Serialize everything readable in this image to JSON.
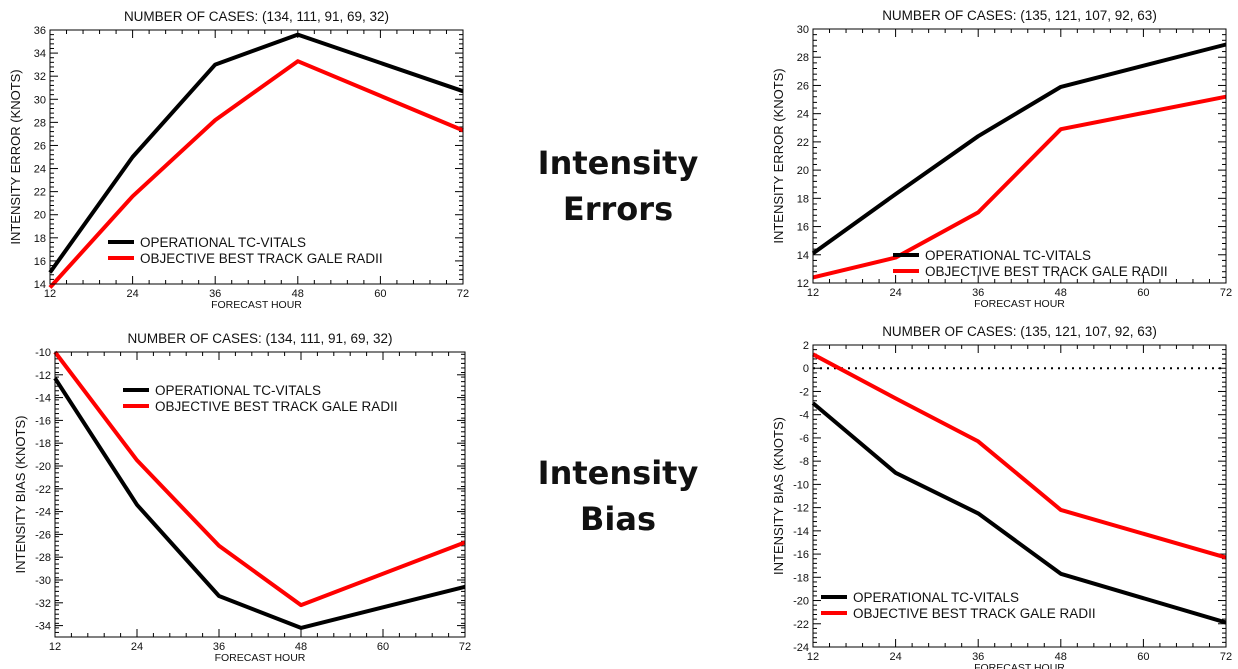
{
  "section_labels": {
    "errors": [
      "Intensity",
      "Errors"
    ],
    "bias": [
      "Intensity",
      "Bias"
    ]
  },
  "colors": {
    "operational": "#000000",
    "objective": "#ff0000",
    "axis": "#000000"
  },
  "chart_data": [
    {
      "type": "line",
      "title": "NUMBER OF CASES: (134, 111, 91, 69, 32)",
      "xlabel": "FORECAST HOUR",
      "ylabel": "INTENSITY ERROR (KNOTS)",
      "x": [
        12,
        24,
        36,
        48,
        60,
        72
      ],
      "xlim": [
        12,
        72
      ],
      "ylim": [
        14,
        36
      ],
      "yticks": [
        14,
        16,
        18,
        20,
        22,
        24,
        26,
        28,
        30,
        32,
        34,
        36
      ],
      "legend_position": "bottom-left",
      "series": [
        {
          "name": "OPERATIONAL TC-VITALS",
          "color": "#000000",
          "points": [
            [
              12,
              15.0
            ],
            [
              24,
              25.0
            ],
            [
              36,
              33.0
            ],
            [
              48,
              35.6
            ],
            [
              72,
              30.7
            ]
          ]
        },
        {
          "name": "OBJECTIVE BEST TRACK GALE RADII",
          "color": "#ff0000",
          "points": [
            [
              12,
              13.7
            ],
            [
              24,
              21.6
            ],
            [
              36,
              28.2
            ],
            [
              48,
              33.3
            ],
            [
              72,
              27.3
            ]
          ]
        }
      ]
    },
    {
      "type": "line",
      "title": "NUMBER OF CASES: (135, 121, 107, 92, 63)",
      "xlabel": "FORECAST HOUR",
      "ylabel": "INTENSITY ERROR (KNOTS)",
      "x": [
        12,
        24,
        36,
        48,
        60,
        72
      ],
      "xlim": [
        12,
        72
      ],
      "ylim": [
        12,
        30
      ],
      "yticks": [
        12,
        14,
        16,
        18,
        20,
        22,
        24,
        26,
        28,
        30
      ],
      "legend_position": "bottom-center",
      "series": [
        {
          "name": "OPERATIONAL TC-VITALS",
          "color": "#000000",
          "points": [
            [
              12,
              14.1
            ],
            [
              24,
              18.3
            ],
            [
              36,
              22.4
            ],
            [
              48,
              25.9
            ],
            [
              72,
              28.9
            ]
          ]
        },
        {
          "name": "OBJECTIVE BEST TRACK GALE RADII",
          "color": "#ff0000",
          "points": [
            [
              12,
              12.4
            ],
            [
              24,
              13.8
            ],
            [
              36,
              17.0
            ],
            [
              48,
              22.9
            ],
            [
              72,
              25.2
            ]
          ]
        }
      ]
    },
    {
      "type": "line",
      "title": "NUMBER OF CASES: (134, 111, 91, 69, 32)",
      "xlabel": "FORECAST HOUR",
      "ylabel": "INTENSITY BIAS (KNOTS)",
      "x": [
        12,
        24,
        36,
        48,
        60,
        72
      ],
      "xlim": [
        12,
        72
      ],
      "ylim": [
        -35,
        -10
      ],
      "yticks": [
        -34,
        -32,
        -30,
        -28,
        -26,
        -24,
        -22,
        -20,
        -18,
        -16,
        -14,
        -12,
        -10
      ],
      "legend_position": "top-center",
      "series": [
        {
          "name": "OPERATIONAL TC-VITALS",
          "color": "#000000",
          "points": [
            [
              12,
              -12.3
            ],
            [
              24,
              -23.4
            ],
            [
              36,
              -31.4
            ],
            [
              48,
              -34.2
            ],
            [
              72,
              -30.6
            ]
          ]
        },
        {
          "name": "OBJECTIVE BEST TRACK GALE  RADII",
          "color": "#ff0000",
          "points": [
            [
              12,
              -10.0
            ],
            [
              24,
              -19.5
            ],
            [
              36,
              -27.0
            ],
            [
              48,
              -32.2
            ],
            [
              72,
              -26.7
            ]
          ]
        }
      ]
    },
    {
      "type": "line",
      "title": "NUMBER OF CASES: (135, 121, 107, 92, 63)",
      "xlabel": "FORECAST HOUR",
      "ylabel": "INTENSITY BIAS (KNOTS)",
      "x": [
        12,
        24,
        36,
        48,
        60,
        72
      ],
      "xlim": [
        12,
        72
      ],
      "ylim": [
        -24,
        2
      ],
      "yticks": [
        -24,
        -22,
        -20,
        -18,
        -16,
        -14,
        -12,
        -10,
        -8,
        -6,
        -4,
        -2,
        0,
        2
      ],
      "zero_line": true,
      "legend_position": "bottom-left",
      "series": [
        {
          "name": "OPERATIONAL TC-VITALS",
          "color": "#000000",
          "points": [
            [
              12,
              -3.0
            ],
            [
              24,
              -9.0
            ],
            [
              36,
              -12.5
            ],
            [
              48,
              -17.7
            ],
            [
              72,
              -21.9
            ]
          ]
        },
        {
          "name": "OBJECTIVE BEST TRACK GALE  RADII",
          "color": "#ff0000",
          "points": [
            [
              12,
              1.2
            ],
            [
              24,
              -2.6
            ],
            [
              36,
              -6.3
            ],
            [
              48,
              -12.2
            ],
            [
              72,
              -16.3
            ]
          ]
        }
      ]
    }
  ]
}
